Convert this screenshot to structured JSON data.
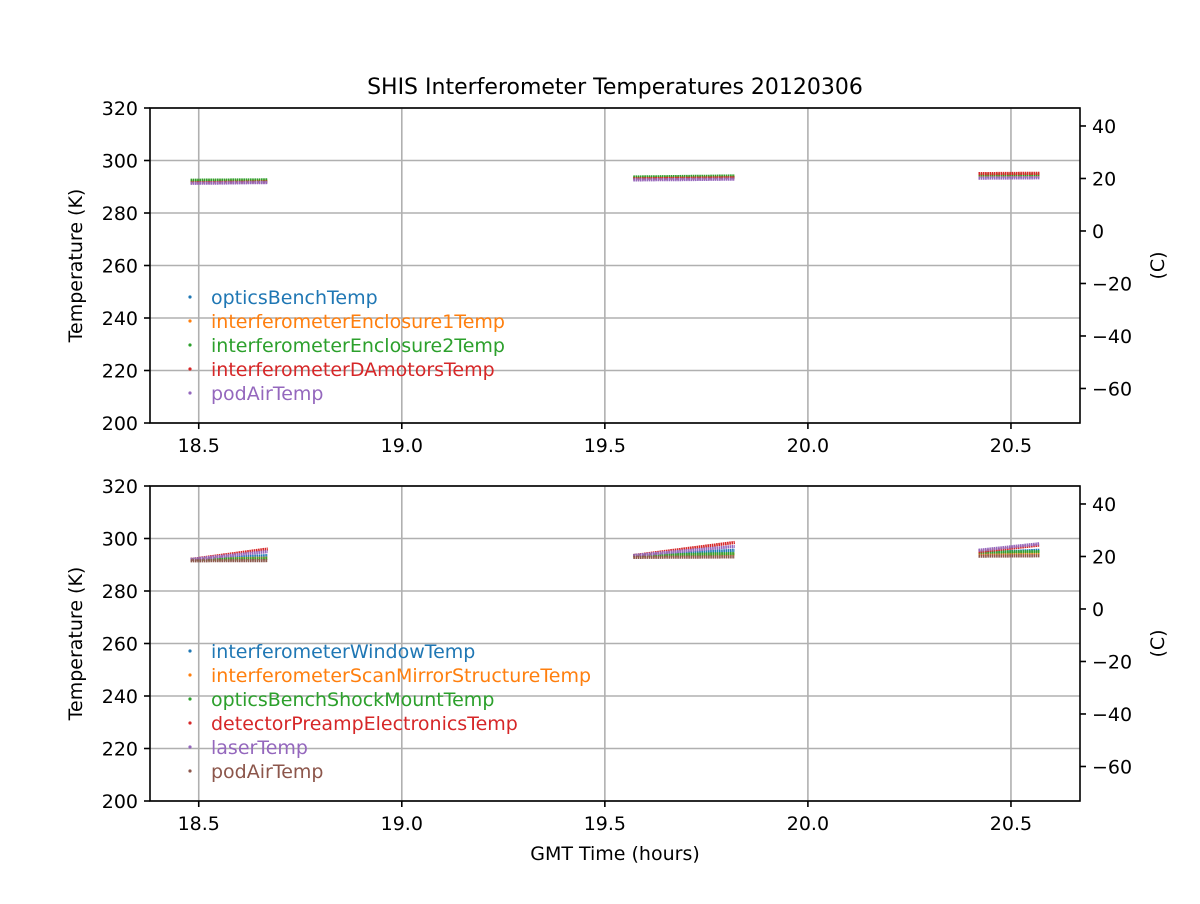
{
  "figure": {
    "title": "SHIS Interferometer Temperatures 20120306"
  },
  "chart_data": [
    {
      "type": "scatter",
      "title": "SHIS Interferometer Temperatures 20120306",
      "xlabel": "",
      "ylabel": "Temperature (K)",
      "ylabel_right": "(C)",
      "xlim": [
        18.38,
        20.67
      ],
      "ylim": [
        200,
        320
      ],
      "ylim_right": [
        -73.15,
        46.85
      ],
      "xticks": [
        "18.5",
        "19.0",
        "19.5",
        "20.0",
        "20.5"
      ],
      "yticks": [
        "200",
        "220",
        "240",
        "260",
        "280",
        "300",
        "320"
      ],
      "yticks_right": [
        "−60",
        "−40",
        "−20",
        "0",
        "20",
        "40"
      ],
      "grid": true,
      "legend_position": "lower-left",
      "series": [
        {
          "name": "opticsBenchTemp",
          "color": "#1f77b4",
          "segments": [
            {
              "x": [
                18.48,
                18.67
              ],
              "y": [
                292.0,
                292.0
              ]
            },
            {
              "x": [
                19.57,
                19.82
              ],
              "y": [
                293.2,
                293.5
              ]
            },
            {
              "x": [
                20.42,
                20.57
              ],
              "y": [
                294.0,
                294.0
              ]
            }
          ]
        },
        {
          "name": "interferometerEnclosure1Temp",
          "color": "#ff7f0e",
          "segments": [
            {
              "x": [
                18.48,
                18.67
              ],
              "y": [
                292.2,
                292.3
              ]
            },
            {
              "x": [
                19.57,
                19.82
              ],
              "y": [
                293.4,
                293.7
              ]
            },
            {
              "x": [
                20.42,
                20.57
              ],
              "y": [
                294.3,
                294.3
              ]
            }
          ]
        },
        {
          "name": "interferometerEnclosure2Temp",
          "color": "#2ca02c",
          "segments": [
            {
              "x": [
                18.48,
                18.67
              ],
              "y": [
                292.5,
                292.6
              ]
            },
            {
              "x": [
                19.57,
                19.82
              ],
              "y": [
                293.7,
                294.1
              ]
            },
            {
              "x": [
                20.42,
                20.57
              ],
              "y": [
                294.6,
                294.7
              ]
            }
          ]
        },
        {
          "name": "interferometerDAmotorsTemp",
          "color": "#d62728",
          "segments": [
            {
              "x": [
                18.48,
                18.67
              ],
              "y": [
                291.5,
                291.8
              ]
            },
            {
              "x": [
                19.57,
                19.82
              ],
              "y": [
                293.0,
                293.4
              ]
            },
            {
              "x": [
                20.42,
                20.57
              ],
              "y": [
                295.0,
                295.1
              ]
            }
          ]
        },
        {
          "name": "podAirTemp",
          "color": "#9467bd",
          "segments": [
            {
              "x": [
                18.48,
                18.67
              ],
              "y": [
                291.3,
                291.6
              ]
            },
            {
              "x": [
                19.57,
                19.82
              ],
              "y": [
                292.6,
                292.9
              ]
            },
            {
              "x": [
                20.42,
                20.57
              ],
              "y": [
                293.3,
                293.4
              ]
            }
          ]
        }
      ]
    },
    {
      "type": "scatter",
      "title": "",
      "xlabel": "GMT Time (hours)",
      "ylabel": "Temperature (K)",
      "ylabel_right": "(C)",
      "xlim": [
        18.38,
        20.67
      ],
      "ylim": [
        200,
        320
      ],
      "ylim_right": [
        -73.15,
        46.85
      ],
      "xticks": [
        "18.5",
        "19.0",
        "19.5",
        "20.0",
        "20.5"
      ],
      "yticks": [
        "200",
        "220",
        "240",
        "260",
        "280",
        "300",
        "320"
      ],
      "yticks_right": [
        "−60",
        "−40",
        "−20",
        "0",
        "20",
        "40"
      ],
      "grid": true,
      "legend_position": "lower-left",
      "series": [
        {
          "name": "interferometerWindowTemp",
          "color": "#1f77b4",
          "segments": [
            {
              "x": [
                18.48,
                18.67
              ],
              "y": [
                292.0,
                293.5
              ]
            },
            {
              "x": [
                19.57,
                19.82
              ],
              "y": [
                293.5,
                295.5
              ]
            },
            {
              "x": [
                20.42,
                20.57
              ],
              "y": [
                294.5,
                295.5
              ]
            }
          ]
        },
        {
          "name": "interferometerScanMirrorStructureTemp",
          "color": "#ff7f0e",
          "segments": [
            {
              "x": [
                18.48,
                18.67
              ],
              "y": [
                292.0,
                292.5
              ]
            },
            {
              "x": [
                19.57,
                19.82
              ],
              "y": [
                293.2,
                294.0
              ]
            },
            {
              "x": [
                20.42,
                20.57
              ],
              "y": [
                294.0,
                294.5
              ]
            }
          ]
        },
        {
          "name": "opticsBenchShockMountTemp",
          "color": "#2ca02c",
          "segments": [
            {
              "x": [
                18.48,
                18.67
              ],
              "y": [
                292.0,
                292.3
              ]
            },
            {
              "x": [
                19.57,
                19.82
              ],
              "y": [
                293.5,
                294.3
              ]
            },
            {
              "x": [
                20.42,
                20.57
              ],
              "y": [
                294.8,
                295.0
              ]
            }
          ]
        },
        {
          "name": "detectorPreampElectronicsTemp",
          "color": "#d62728",
          "segments": [
            {
              "x": [
                18.48,
                18.67
              ],
              "y": [
                292.0,
                296.0
              ]
            },
            {
              "x": [
                19.57,
                19.82
              ],
              "y": [
                293.5,
                298.5
              ]
            },
            {
              "x": [
                20.42,
                20.57
              ],
              "y": [
                295.0,
                297.5
              ]
            }
          ]
        },
        {
          "name": "laserTemp",
          "color": "#9467bd",
          "segments": [
            {
              "x": [
                18.48,
                18.67
              ],
              "y": [
                292.0,
                295.0
              ]
            },
            {
              "x": [
                19.57,
                19.82
              ],
              "y": [
                293.5,
                297.0
              ]
            },
            {
              "x": [
                20.42,
                20.57
              ],
              "y": [
                295.5,
                298.0
              ]
            }
          ]
        },
        {
          "name": "podAirTemp",
          "color": "#8c564b",
          "segments": [
            {
              "x": [
                18.48,
                18.67
              ],
              "y": [
                291.5,
                291.6
              ]
            },
            {
              "x": [
                19.57,
                19.82
              ],
              "y": [
                292.8,
                293.0
              ]
            },
            {
              "x": [
                20.42,
                20.57
              ],
              "y": [
                293.3,
                293.4
              ]
            }
          ]
        }
      ]
    }
  ]
}
